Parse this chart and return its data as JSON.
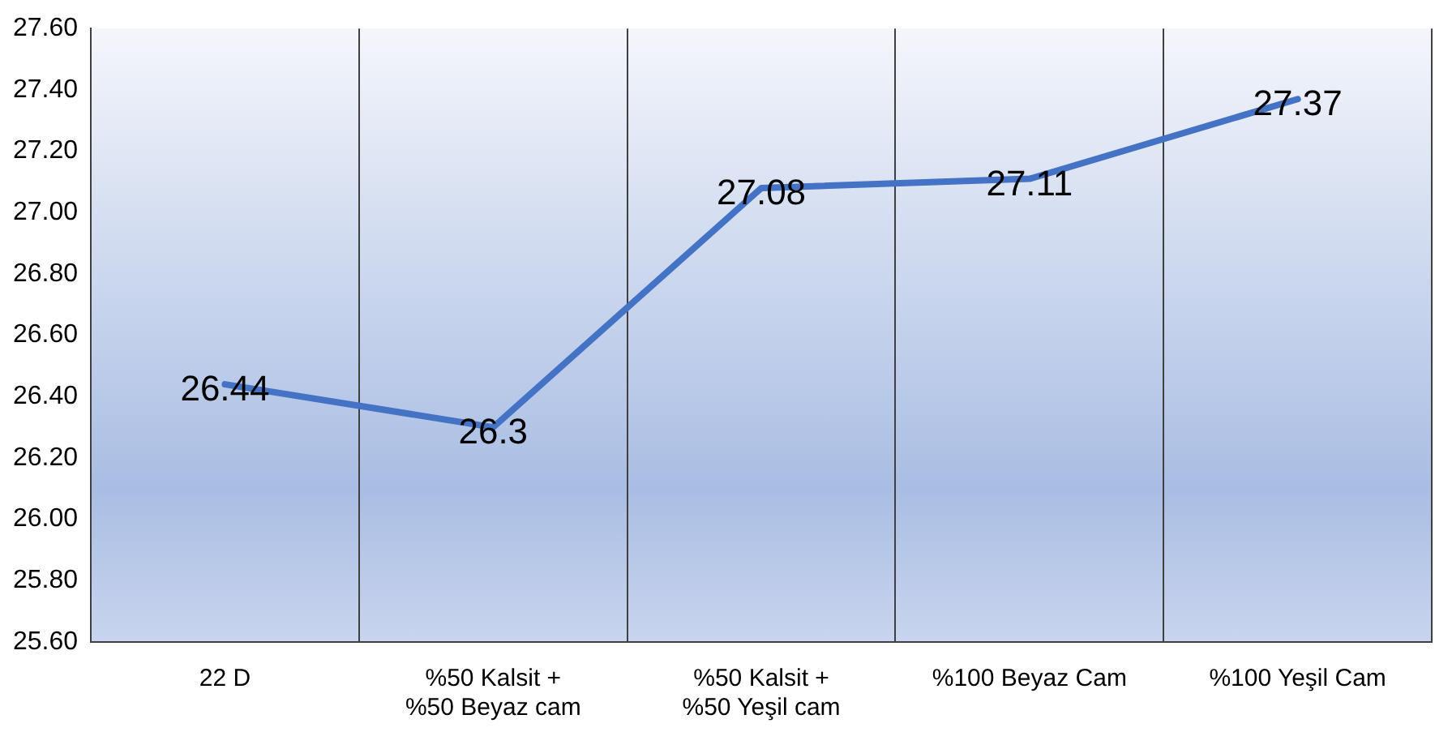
{
  "chart_data": {
    "type": "line",
    "categories": [
      "22 D",
      "%50 Kalsit + %50 Beyaz cam",
      "%50 Kalsit + %50 Yeşil cam",
      "%100 Beyaz Cam",
      "%100 Yeşil Cam"
    ],
    "values": [
      26.44,
      26.3,
      27.08,
      27.11,
      27.37
    ],
    "color": "#4472c4",
    "ylim": [
      25.6,
      27.6
    ],
    "yticks": [
      {
        "value": 25.6,
        "label": "25.60"
      },
      {
        "value": 25.8,
        "label": "25.80"
      },
      {
        "value": 26,
        "label": "26.00"
      },
      {
        "value": 26.2,
        "label": "26.20"
      },
      {
        "value": 26.4,
        "label": "26.40"
      },
      {
        "value": 26.6,
        "label": "26.60"
      },
      {
        "value": 26.8,
        "label": "26.80"
      },
      {
        "value": 27,
        "label": "27.00"
      },
      {
        "value": 27.2,
        "label": "27.20"
      },
      {
        "value": 27.4,
        "label": "27.40"
      },
      {
        "value": 27.6,
        "label": "27.60"
      }
    ],
    "grid": "x",
    "data_labels": true,
    "legend": false,
    "marker": "none",
    "line_style": "solid"
  }
}
